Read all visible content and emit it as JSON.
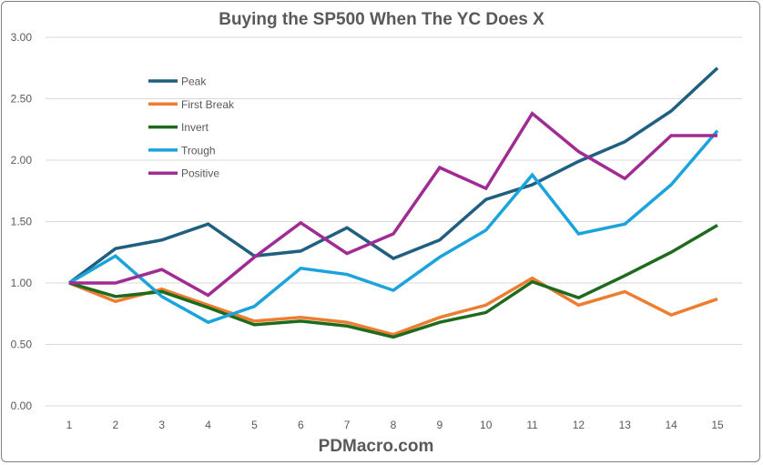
{
  "chart_data": {
    "type": "line",
    "title": "Buying the SP500 When The YC Does X",
    "xlabel": "PDMacro.com",
    "ylabel": "",
    "categories": [
      "1",
      "2",
      "3",
      "4",
      "5",
      "6",
      "7",
      "8",
      "9",
      "10",
      "11",
      "12",
      "13",
      "14",
      "15"
    ],
    "ylim": [
      0,
      3
    ],
    "yticks": [
      "0.00",
      "0.50",
      "1.00",
      "1.50",
      "2.00",
      "2.50",
      "3.00"
    ],
    "grid": true,
    "legend_position": "top-left",
    "series": [
      {
        "name": "Peak",
        "color": "#1f5f7f",
        "values": [
          1.0,
          1.28,
          1.35,
          1.48,
          1.22,
          1.26,
          1.45,
          1.2,
          1.35,
          1.68,
          1.8,
          1.99,
          2.15,
          2.4,
          2.75
        ]
      },
      {
        "name": "First Break",
        "color": "#ed7d31",
        "values": [
          1.0,
          0.85,
          0.95,
          0.82,
          0.69,
          0.72,
          0.68,
          0.58,
          0.72,
          0.82,
          1.04,
          0.82,
          0.93,
          0.74,
          0.87
        ]
      },
      {
        "name": "Invert",
        "color": "#1e6b1e",
        "values": [
          1.0,
          0.89,
          0.93,
          0.8,
          0.66,
          0.69,
          0.65,
          0.56,
          0.68,
          0.76,
          1.01,
          0.88,
          1.06,
          1.25,
          1.47
        ]
      },
      {
        "name": "Trough",
        "color": "#1ca3dc",
        "values": [
          1.0,
          1.22,
          0.89,
          0.68,
          0.81,
          1.12,
          1.07,
          0.94,
          1.21,
          1.43,
          1.88,
          1.4,
          1.48,
          1.8,
          2.24
        ]
      },
      {
        "name": "Positive",
        "color": "#a02b93",
        "values": [
          1.0,
          1.0,
          1.11,
          0.9,
          1.21,
          1.49,
          1.24,
          1.4,
          1.94,
          1.77,
          2.38,
          2.07,
          1.85,
          2.2,
          2.2
        ]
      }
    ]
  }
}
